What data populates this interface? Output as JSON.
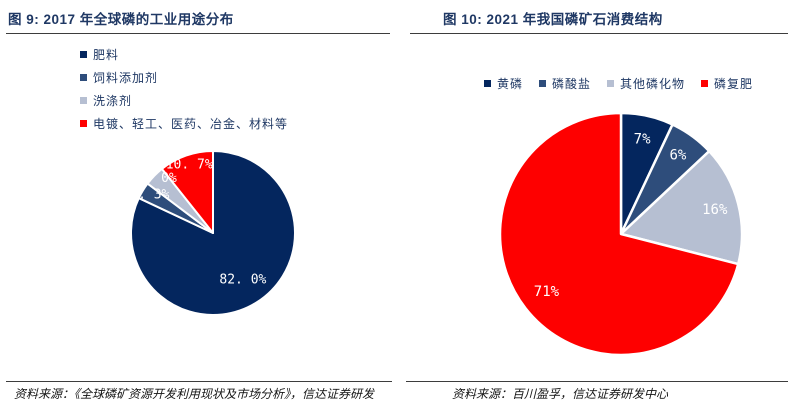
{
  "chart_data": [
    {
      "type": "pie",
      "title": "图 9: 2017 年全球磷的工业用途分布",
      "labels": [
        "肥料",
        "饲料添加剂",
        "洗涤剂",
        "电镀、轻工、医药、冶金、材料等"
      ],
      "values": [
        82.0,
        3.3,
        4.0,
        10.7
      ],
      "value_labels": [
        "82. 0%",
        "3. 3%",
        "4. 0%",
        "10. 7%"
      ],
      "colors": [
        "#04265E",
        "#2E4D7B",
        "#B6BFD2",
        "#FE0000"
      ],
      "legend_position": "upper-left-vertical",
      "start_angle_deg": 0,
      "clockwise": true,
      "label_factors": [
        0.68,
        0.9,
        0.95,
        0.88
      ],
      "source": "资料来源：《全球磷矿资源开发利用现状及市场分析》，信达证券研发"
    },
    {
      "type": "pie",
      "title": "图 10: 2021 年我国磷矿石消费结构",
      "labels": [
        "黄磷",
        "磷酸盐",
        "其他磷化物",
        "磷复肥"
      ],
      "values": [
        7,
        6,
        16,
        71
      ],
      "value_labels": [
        "7%",
        "6%",
        "16%",
        "71%"
      ],
      "colors": [
        "#04265E",
        "#2E4D7B",
        "#B6BFD2",
        "#FE0000"
      ],
      "legend_position": "top-horizontal",
      "start_angle_deg": 0,
      "clockwise": true,
      "label_factors": [
        0.8,
        0.8,
        0.8,
        0.78
      ],
      "source": "资料来源：百川盈孚，信达证券研发中心"
    }
  ]
}
